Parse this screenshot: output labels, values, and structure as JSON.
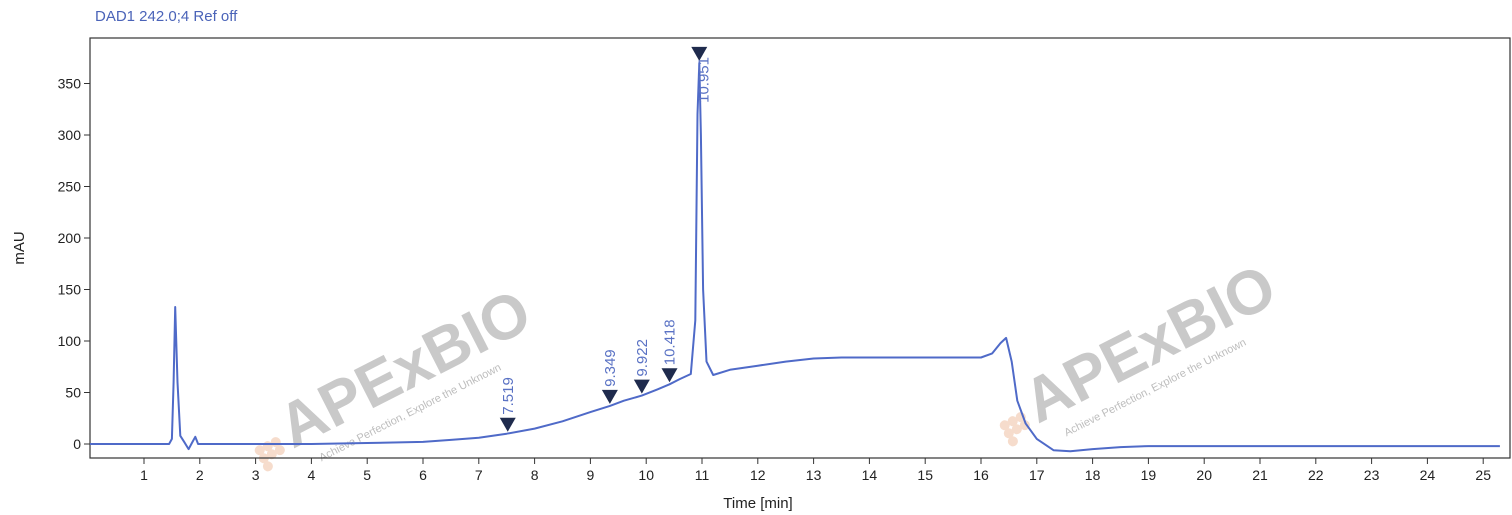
{
  "chart_data": {
    "type": "line",
    "title": "DAD1 242.0;4 Ref off",
    "xlabel": "Time [min]",
    "ylabel": "mAU",
    "xlim": [
      0,
      25.3
    ],
    "ylim": [
      -15,
      385
    ],
    "x_ticks": [
      1,
      2,
      3,
      4,
      5,
      6,
      7,
      8,
      9,
      10,
      11,
      12,
      13,
      14,
      15,
      16,
      17,
      18,
      19,
      20,
      21,
      22,
      23,
      24,
      25
    ],
    "y_ticks": [
      0,
      50,
      100,
      150,
      200,
      250,
      300,
      350
    ],
    "grid": false,
    "series": [
      {
        "color": "#4f6ac8",
        "x": [
          0,
          1.45,
          1.5,
          1.53,
          1.56,
          1.6,
          1.65,
          1.72,
          1.8,
          1.87,
          1.92,
          1.97,
          2.05,
          2.2,
          2.5,
          3,
          4,
          5,
          6,
          6.5,
          7,
          7.5,
          8,
          8.5,
          9,
          9.349,
          9.6,
          9.922,
          10.2,
          10.418,
          10.6,
          10.8,
          10.88,
          10.92,
          10.951,
          10.98,
          11.02,
          11.08,
          11.2,
          11.5,
          12,
          12.5,
          13,
          13.5,
          14,
          15,
          16,
          16.2,
          16.35,
          16.45,
          16.55,
          16.65,
          16.8,
          17,
          17.3,
          17.6,
          18,
          18.5,
          19,
          20,
          22,
          25.3
        ],
        "y": [
          0,
          0,
          5,
          60,
          133,
          60,
          8,
          2,
          -5,
          2,
          7,
          0,
          0,
          0,
          0,
          0,
          0,
          1,
          2,
          4,
          6,
          10,
          15,
          22,
          31,
          37,
          42,
          47,
          53,
          58,
          63,
          68,
          120,
          320,
          370,
          300,
          150,
          80,
          67,
          72,
          76,
          80,
          83,
          84,
          84,
          84,
          84,
          88,
          98,
          103,
          80,
          42,
          20,
          5,
          -6,
          -7,
          -5,
          -3,
          -2,
          -2,
          -2,
          -2
        ]
      }
    ],
    "peaks": [
      {
        "time": 7.519,
        "label": "7.519",
        "y": 10
      },
      {
        "time": 9.349,
        "label": "9.349",
        "y": 37
      },
      {
        "time": 9.922,
        "label": "9.922",
        "y": 47
      },
      {
        "time": 10.418,
        "label": "10.418",
        "y": 58
      },
      {
        "time": 10.951,
        "label": "10.951",
        "y": 370
      }
    ]
  },
  "watermark": {
    "brand": "APExBIO",
    "tagline": "Achieve Perfection, Explore the Unknown"
  }
}
